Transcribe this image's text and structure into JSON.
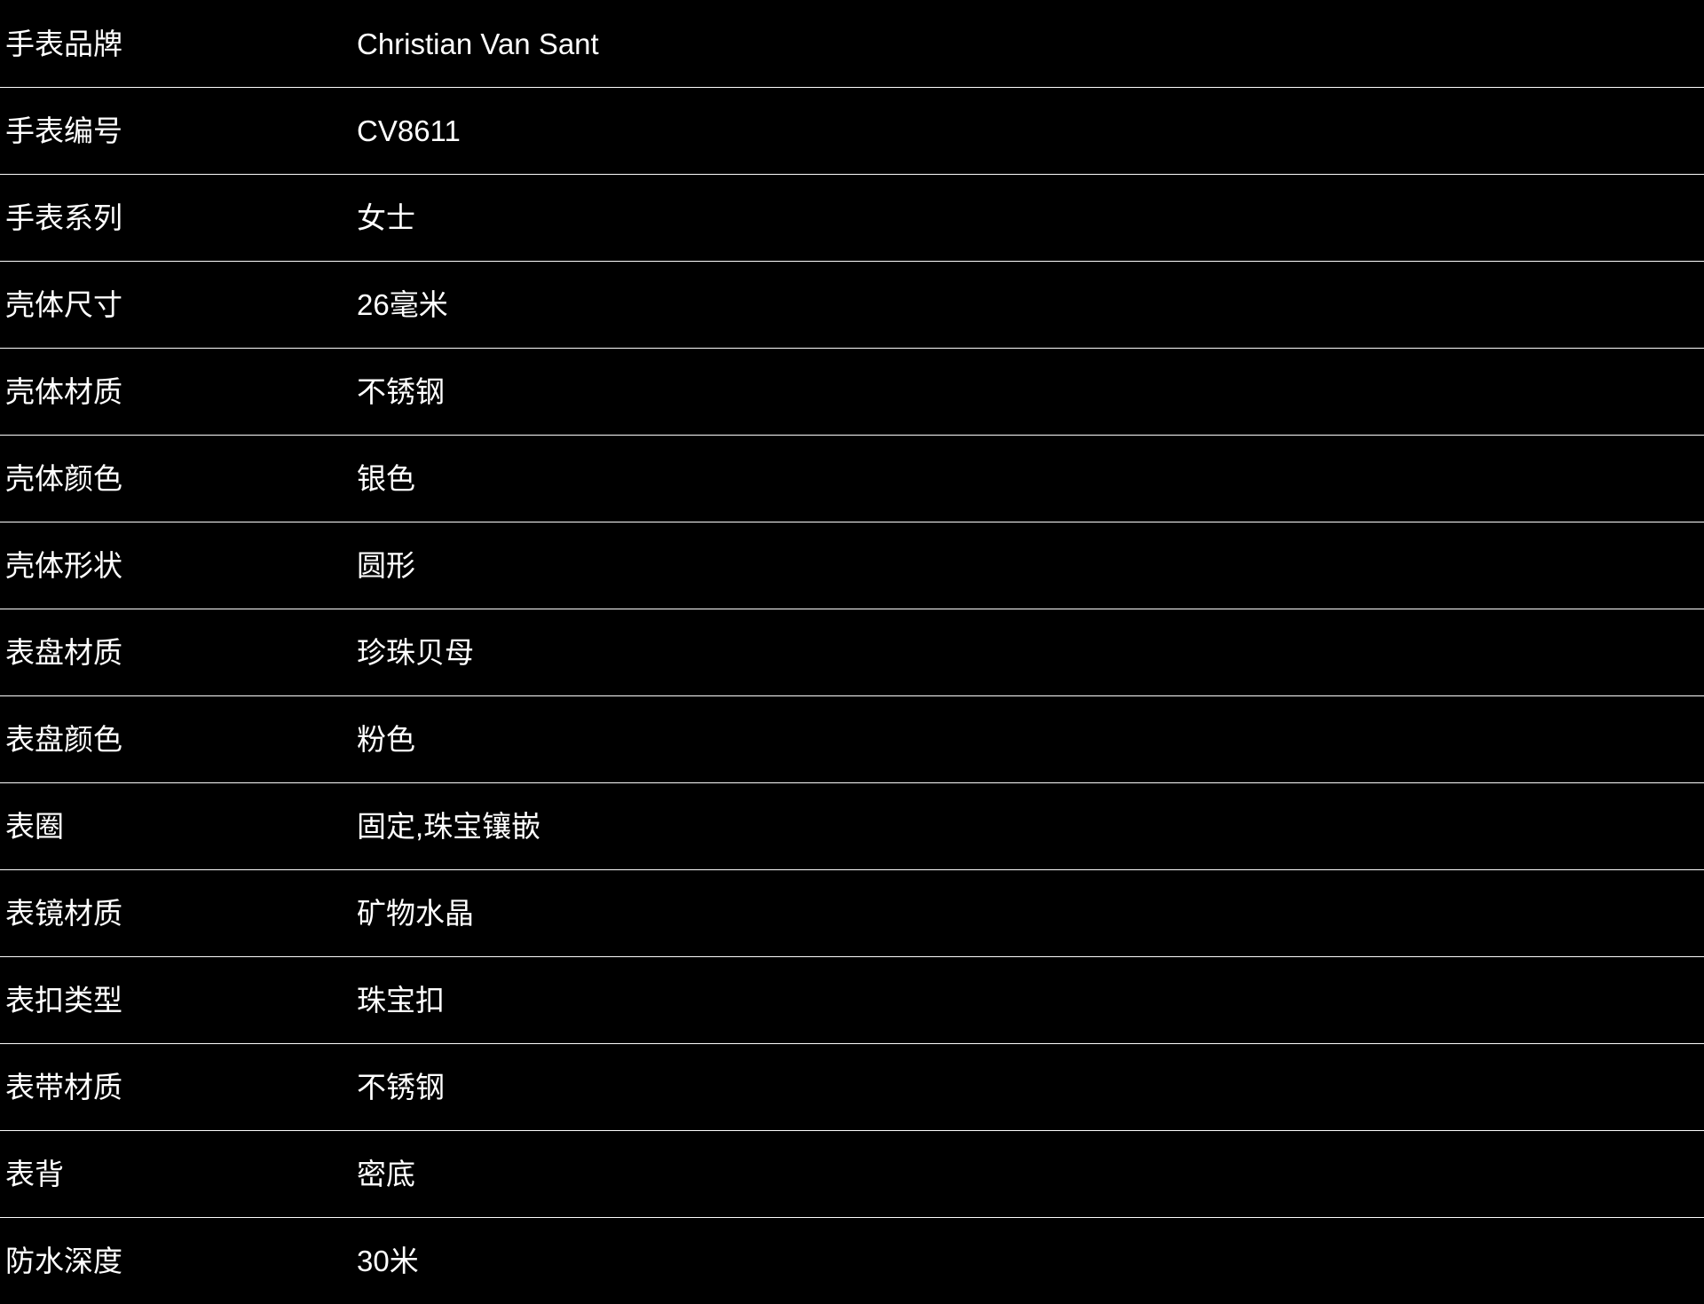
{
  "page": {
    "background_color": "#000000",
    "text_color": "#ffffff",
    "divider_color": "#fdfdfd"
  },
  "spec_table": {
    "rows": [
      {
        "label": "手表品牌",
        "value": "Christian Van Sant"
      },
      {
        "label": "手表编号",
        "value": "CV8611"
      },
      {
        "label": "手表系列",
        "value": "女士"
      },
      {
        "label": "壳体尺寸",
        "value": "26毫米"
      },
      {
        "label": "壳体材质",
        "value": "不锈钢"
      },
      {
        "label": "壳体颜色",
        "value": "银色"
      },
      {
        "label": "壳体形状",
        "value": "圆形"
      },
      {
        "label": "表盘材质",
        "value": "珍珠贝母"
      },
      {
        "label": "表盘颜色",
        "value": "粉色"
      },
      {
        "label": "表圈",
        "value": "固定,珠宝镶嵌"
      },
      {
        "label": "表镜材质",
        "value": "矿物水晶"
      },
      {
        "label": "表扣类型",
        "value": "珠宝扣"
      },
      {
        "label": "表带材质",
        "value": "不锈钢"
      },
      {
        "label": "表背",
        "value": "密底"
      },
      {
        "label": "防水深度",
        "value": "30米"
      }
    ]
  }
}
